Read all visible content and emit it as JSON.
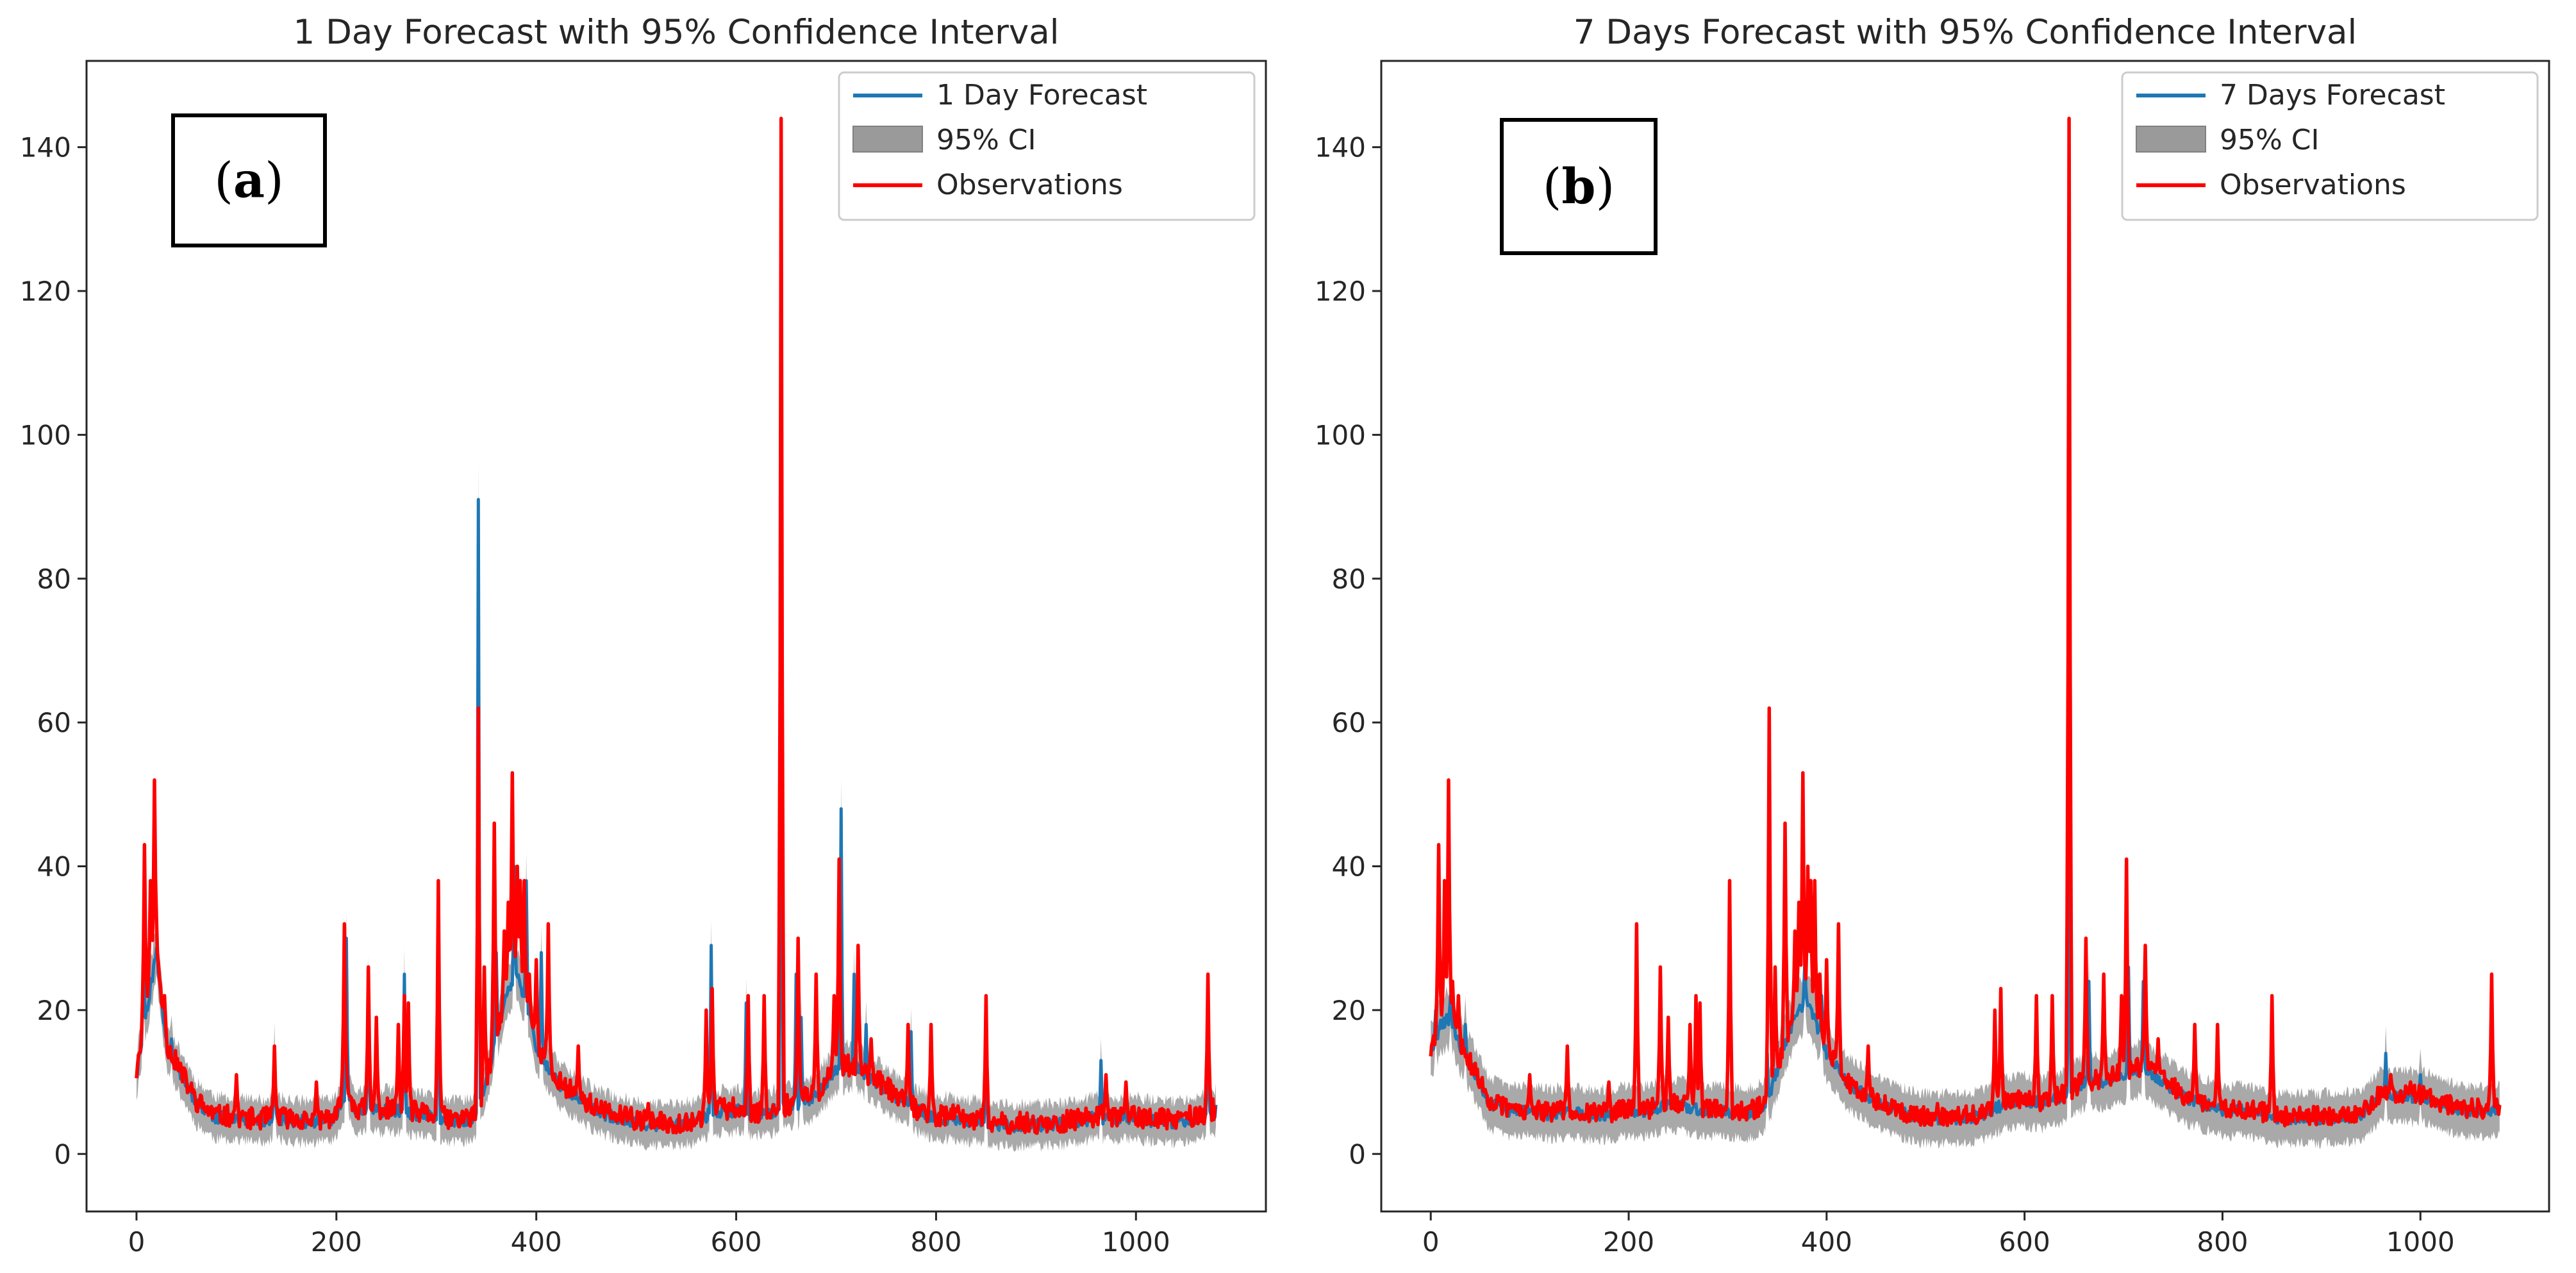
{
  "colors": {
    "forecast": "#1f77b4",
    "ci": "#9a9a9a",
    "observations": "#ff0000",
    "axis": "#262626"
  },
  "chart_data": [
    {
      "type": "line",
      "panel_label": {
        "open": "(",
        "letter": "a",
        "close": ")"
      },
      "title": "1 Day Forecast with 95% Confidence Interval",
      "xlabel": "",
      "ylabel": "",
      "xlim": [
        -50,
        1130
      ],
      "ylim": [
        -8,
        152
      ],
      "xticks": [
        0,
        200,
        400,
        600,
        800,
        1000
      ],
      "xtick_labels": [
        "0",
        "200",
        "400",
        "600",
        "800",
        "1000"
      ],
      "yticks": [
        0,
        20,
        40,
        60,
        80,
        100,
        120,
        140
      ],
      "ytick_labels": [
        "0",
        "20",
        "40",
        "60",
        "80",
        "100",
        "120",
        "140"
      ],
      "legend": {
        "position": "top-right",
        "entries": [
          "1 Day Forecast",
          "95% CI",
          "Observations"
        ]
      },
      "base": [
        [
          0,
          11
        ],
        [
          10,
          20
        ],
        [
          20,
          28
        ],
        [
          30,
          15
        ],
        [
          45,
          11
        ],
        [
          60,
          7
        ],
        [
          80,
          5
        ],
        [
          100,
          5
        ],
        [
          120,
          4.5
        ],
        [
          140,
          5
        ],
        [
          160,
          4.5
        ],
        [
          180,
          4.5
        ],
        [
          200,
          5
        ],
        [
          210,
          9
        ],
        [
          220,
          6
        ],
        [
          240,
          6
        ],
        [
          260,
          6
        ],
        [
          280,
          5.5
        ],
        [
          300,
          5
        ],
        [
          320,
          4.5
        ],
        [
          340,
          5
        ],
        [
          355,
          13
        ],
        [
          370,
          22
        ],
        [
          380,
          25
        ],
        [
          390,
          21
        ],
        [
          400,
          15
        ],
        [
          420,
          10
        ],
        [
          440,
          8
        ],
        [
          460,
          6
        ],
        [
          480,
          5
        ],
        [
          500,
          4.5
        ],
        [
          520,
          4
        ],
        [
          540,
          4
        ],
        [
          560,
          4.5
        ],
        [
          580,
          6
        ],
        [
          600,
          6
        ],
        [
          620,
          5.5
        ],
        [
          640,
          6
        ],
        [
          660,
          7
        ],
        [
          680,
          8
        ],
        [
          700,
          12
        ],
        [
          720,
          12
        ],
        [
          740,
          10
        ],
        [
          760,
          8
        ],
        [
          780,
          6
        ],
        [
          800,
          5
        ],
        [
          820,
          5
        ],
        [
          840,
          4.5
        ],
        [
          860,
          4
        ],
        [
          880,
          4
        ],
        [
          900,
          4
        ],
        [
          920,
          4
        ],
        [
          940,
          4.5
        ],
        [
          960,
          5
        ],
        [
          980,
          5
        ],
        [
          1000,
          5
        ],
        [
          1020,
          4.5
        ],
        [
          1040,
          4.5
        ],
        [
          1060,
          5
        ],
        [
          1080,
          6
        ]
      ],
      "forecast_spikes": [
        [
          7,
          28
        ],
        [
          18,
          27
        ],
        [
          25,
          20
        ],
        [
          35,
          16
        ],
        [
          138,
          15
        ],
        [
          210,
          30
        ],
        [
          232,
          24
        ],
        [
          268,
          25
        ],
        [
          302,
          34
        ],
        [
          342,
          91
        ],
        [
          360,
          28
        ],
        [
          378,
          40
        ],
        [
          390,
          38
        ],
        [
          405,
          28
        ],
        [
          575,
          29
        ],
        [
          610,
          21
        ],
        [
          645,
          100
        ],
        [
          660,
          25
        ],
        [
          665,
          19
        ],
        [
          705,
          48
        ],
        [
          718,
          25
        ],
        [
          730,
          18
        ],
        [
          775,
          17
        ],
        [
          850,
          16
        ],
        [
          965,
          13
        ],
        [
          1072,
          18
        ]
      ],
      "obs_spikes": [
        [
          3,
          14
        ],
        [
          8,
          43
        ],
        [
          14,
          38
        ],
        [
          18,
          52
        ],
        [
          22,
          24
        ],
        [
          28,
          22
        ],
        [
          100,
          11
        ],
        [
          138,
          15
        ],
        [
          180,
          10
        ],
        [
          208,
          32
        ],
        [
          232,
          26
        ],
        [
          240,
          19
        ],
        [
          262,
          18
        ],
        [
          268,
          22
        ],
        [
          272,
          21
        ],
        [
          302,
          38
        ],
        [
          342,
          62
        ],
        [
          348,
          26
        ],
        [
          358,
          46
        ],
        [
          368,
          31
        ],
        [
          372,
          35
        ],
        [
          376,
          53
        ],
        [
          381,
          40
        ],
        [
          384,
          38
        ],
        [
          388,
          38
        ],
        [
          393,
          25
        ],
        [
          400,
          27
        ],
        [
          412,
          32
        ],
        [
          442,
          15
        ],
        [
          512,
          7
        ],
        [
          570,
          20
        ],
        [
          576,
          23
        ],
        [
          612,
          22
        ],
        [
          628,
          22
        ],
        [
          645,
          144
        ],
        [
          662,
          30
        ],
        [
          680,
          25
        ],
        [
          698,
          22
        ],
        [
          703,
          41
        ],
        [
          722,
          29
        ],
        [
          735,
          16
        ],
        [
          772,
          18
        ],
        [
          795,
          18
        ],
        [
          850,
          22
        ],
        [
          970,
          11
        ],
        [
          990,
          10
        ],
        [
          1072,
          25
        ]
      ],
      "obs_noise_amp": 3.0,
      "ci_half_width": 2.8
    },
    {
      "type": "line",
      "panel_label": {
        "open": "(",
        "letter": "b",
        "close": ")"
      },
      "title": "7 Days Forecast with 95% Confidence Interval",
      "xlabel": "",
      "ylabel": "",
      "xlim": [
        -50,
        1130
      ],
      "ylim": [
        -8,
        152
      ],
      "xticks": [
        0,
        200,
        400,
        600,
        800,
        1000
      ],
      "xtick_labels": [
        "0",
        "200",
        "400",
        "600",
        "800",
        "1000"
      ],
      "yticks": [
        0,
        20,
        40,
        60,
        80,
        100,
        120,
        140
      ],
      "ytick_labels": [
        "0",
        "20",
        "40",
        "60",
        "80",
        "100",
        "120",
        "140"
      ],
      "legend": {
        "position": "top-right",
        "entries": [
          "7 Days Forecast",
          "95% CI",
          "Observations"
        ]
      },
      "base": [
        [
          0,
          14
        ],
        [
          10,
          18
        ],
        [
          20,
          19
        ],
        [
          30,
          15
        ],
        [
          45,
          11
        ],
        [
          60,
          7
        ],
        [
          80,
          6
        ],
        [
          100,
          6
        ],
        [
          120,
          5.5
        ],
        [
          140,
          6
        ],
        [
          160,
          5.5
        ],
        [
          180,
          5.5
        ],
        [
          200,
          6
        ],
        [
          220,
          6
        ],
        [
          240,
          7
        ],
        [
          260,
          6.5
        ],
        [
          280,
          6
        ],
        [
          300,
          6
        ],
        [
          320,
          5.5
        ],
        [
          340,
          7
        ],
        [
          355,
          14
        ],
        [
          370,
          20
        ],
        [
          380,
          21
        ],
        [
          390,
          18
        ],
        [
          400,
          14
        ],
        [
          420,
          10
        ],
        [
          440,
          8
        ],
        [
          460,
          6.5
        ],
        [
          480,
          5.5
        ],
        [
          500,
          5
        ],
        [
          520,
          5
        ],
        [
          540,
          5
        ],
        [
          560,
          5.5
        ],
        [
          580,
          7
        ],
        [
          600,
          7.5
        ],
        [
          620,
          7
        ],
        [
          640,
          8
        ],
        [
          660,
          10
        ],
        [
          680,
          10
        ],
        [
          700,
          11
        ],
        [
          720,
          12
        ],
        [
          740,
          10
        ],
        [
          760,
          8
        ],
        [
          780,
          7
        ],
        [
          800,
          6
        ],
        [
          820,
          6
        ],
        [
          840,
          5.5
        ],
        [
          860,
          5
        ],
        [
          880,
          5
        ],
        [
          900,
          5
        ],
        [
          920,
          5
        ],
        [
          940,
          5.5
        ],
        [
          960,
          8
        ],
        [
          980,
          8
        ],
        [
          1000,
          8
        ],
        [
          1020,
          7
        ],
        [
          1040,
          6
        ],
        [
          1060,
          6
        ],
        [
          1080,
          6
        ]
      ],
      "forecast_spikes": [
        [
          5,
          20
        ],
        [
          20,
          22
        ],
        [
          35,
          18
        ],
        [
          340,
          14
        ],
        [
          378,
          27
        ],
        [
          395,
          22
        ],
        [
          645,
          51
        ],
        [
          665,
          24
        ],
        [
          705,
          26
        ],
        [
          720,
          24
        ],
        [
          965,
          14
        ],
        [
          1000,
          11
        ]
      ],
      "obs_spikes": [
        [
          3,
          14
        ],
        [
          8,
          43
        ],
        [
          14,
          38
        ],
        [
          18,
          52
        ],
        [
          22,
          24
        ],
        [
          28,
          22
        ],
        [
          100,
          11
        ],
        [
          138,
          15
        ],
        [
          180,
          10
        ],
        [
          208,
          32
        ],
        [
          232,
          26
        ],
        [
          240,
          19
        ],
        [
          262,
          18
        ],
        [
          268,
          22
        ],
        [
          272,
          21
        ],
        [
          302,
          38
        ],
        [
          342,
          62
        ],
        [
          348,
          26
        ],
        [
          358,
          46
        ],
        [
          368,
          31
        ],
        [
          372,
          35
        ],
        [
          376,
          53
        ],
        [
          381,
          40
        ],
        [
          384,
          38
        ],
        [
          388,
          38
        ],
        [
          393,
          25
        ],
        [
          400,
          27
        ],
        [
          412,
          32
        ],
        [
          442,
          15
        ],
        [
          512,
          7
        ],
        [
          570,
          20
        ],
        [
          576,
          23
        ],
        [
          612,
          22
        ],
        [
          628,
          22
        ],
        [
          645,
          144
        ],
        [
          662,
          30
        ],
        [
          680,
          25
        ],
        [
          698,
          22
        ],
        [
          703,
          41
        ],
        [
          722,
          29
        ],
        [
          735,
          16
        ],
        [
          772,
          18
        ],
        [
          795,
          18
        ],
        [
          850,
          22
        ],
        [
          970,
          11
        ],
        [
          990,
          10
        ],
        [
          1072,
          25
        ]
      ],
      "obs_noise_amp": 2.8,
      "ci_half_width": 3.3
    }
  ]
}
